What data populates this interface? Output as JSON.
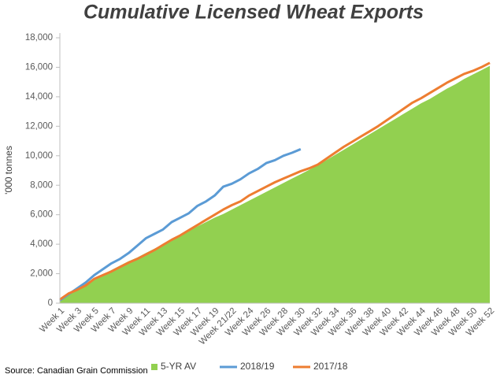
{
  "chart_data": {
    "type": "area-line",
    "title": "Cumulative Licensed Wheat Exports",
    "y_label": "'000 tonnes",
    "source": "Source: Canadian Grain Commission",
    "categories": [
      "Week 1",
      null,
      "Week 3",
      null,
      "Week 5",
      null,
      "Week 7",
      null,
      "Week 9",
      null,
      "Week 11",
      null,
      "Week 13",
      null,
      "Week 15",
      null,
      "Week 17",
      null,
      "Week 19",
      null,
      "Week 21/22",
      null,
      "Week 24",
      null,
      "Week 26",
      null,
      "Week 28",
      null,
      "Week 30",
      null,
      "Week 32",
      null,
      "Week 34",
      null,
      "Week 36",
      null,
      "Week 38",
      null,
      "Week 40",
      null,
      "Week 42",
      null,
      "Week 44",
      null,
      "Week 46",
      null,
      "Week 48",
      null,
      "Week 50",
      null,
      "Week 52"
    ],
    "series": [
      {
        "name": "5-YR AV",
        "color": "#92d050",
        "style": "area",
        "values": [
          300,
          600,
          950,
          1300,
          1650,
          1950,
          2250,
          2550,
          2850,
          3100,
          3400,
          3700,
          4000,
          4300,
          4600,
          4900,
          5200,
          5500,
          5800,
          6050,
          6350,
          6650,
          6950,
          7250,
          7550,
          7850,
          8150,
          8450,
          8750,
          9050,
          9350,
          9700,
          10050,
          10400,
          10750,
          11100,
          11450,
          11800,
          12150,
          12500,
          12850,
          13200,
          13550,
          13850,
          14200,
          14550,
          14850,
          15200,
          15500,
          15800,
          16100
        ]
      },
      {
        "name": "2018/19",
        "color": "#5b9bd5",
        "style": "line",
        "values": [
          200,
          600,
          1000,
          1400,
          1900,
          2300,
          2700,
          3000,
          3400,
          3900,
          4400,
          4700,
          5000,
          5500,
          5800,
          6100,
          6600,
          6900,
          7300,
          7900,
          8100,
          8400,
          8800,
          9100,
          9500,
          9700,
          10000,
          10200,
          10450,
          null,
          null,
          null,
          null,
          null,
          null,
          null,
          null,
          null,
          null,
          null,
          null,
          null,
          null,
          null,
          null,
          null,
          null,
          null,
          null,
          null,
          null
        ]
      },
      {
        "name": "2017/18",
        "color": "#ed7d31",
        "style": "line",
        "values": [
          250,
          650,
          900,
          1200,
          1650,
          1900,
          2150,
          2450,
          2750,
          3000,
          3300,
          3600,
          3950,
          4300,
          4600,
          4950,
          5300,
          5650,
          6000,
          6350,
          6650,
          6900,
          7300,
          7600,
          7900,
          8200,
          8450,
          8700,
          8950,
          9150,
          9400,
          9800,
          10200,
          10600,
          10950,
          11300,
          11650,
          12000,
          12400,
          12800,
          13200,
          13600,
          13900,
          14250,
          14600,
          14950,
          15250,
          15550,
          15750,
          16000,
          16300
        ]
      }
    ],
    "ylim": [
      0,
      18000
    ],
    "yticks": [
      0,
      {
        "value": 2000,
        "label": "2,000"
      },
      {
        "value": 4000,
        "label": "4,000"
      },
      {
        "value": 6000,
        "label": "6,000"
      },
      {
        "value": 8000,
        "label": "8,000"
      },
      {
        "value": 10000,
        "label": "10,000"
      },
      {
        "value": 12000,
        "label": "12,000"
      },
      {
        "value": 14000,
        "label": "14,000"
      },
      {
        "value": 16000,
        "label": "16,000"
      },
      {
        "value": 18000,
        "label": "18,000"
      }
    ],
    "grid": false,
    "legend": "bottom"
  }
}
